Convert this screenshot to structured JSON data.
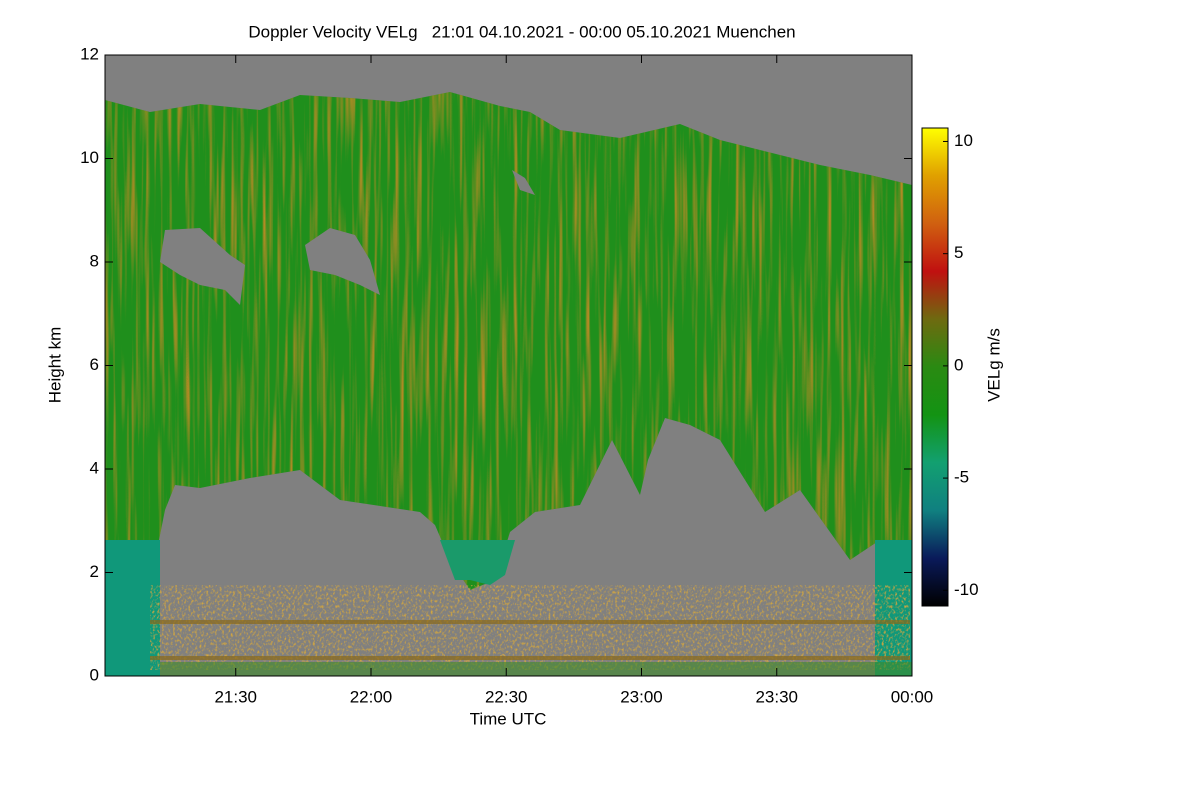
{
  "chart_data": {
    "type": "heatmap",
    "title": "Doppler Velocity VELg   21:01 04.10.2021 - 00:00 05.10.2021 Muenchen",
    "x_label": "Time UTC",
    "y_label": "Height km",
    "colorbar_label": "VELg m/s",
    "xlim": [
      21.0167,
      24
    ],
    "xticks": [
      {
        "value": 21.5,
        "label": "21:30"
      },
      {
        "value": 22,
        "label": "22:00"
      },
      {
        "value": 22.5,
        "label": "22:30"
      },
      {
        "value": 23,
        "label": "23:00"
      },
      {
        "value": 23.5,
        "label": "23:30"
      },
      {
        "value": 24,
        "label": "00:00"
      }
    ],
    "ylim": [
      0,
      12
    ],
    "yticks": [
      0,
      2,
      4,
      6,
      8,
      10,
      12
    ],
    "clim": [
      -10.7,
      10.6
    ],
    "cticks": [
      -10,
      -5,
      0,
      5,
      10
    ],
    "colorscale": [
      "#000000",
      "#0a1a5a",
      "#108080",
      "#12a070",
      "#139313",
      "#2a8a12",
      "#6e6a10",
      "#c01010",
      "#d06010",
      "#e0a000",
      "#ffff00"
    ],
    "missing_color": "#808080"
  }
}
